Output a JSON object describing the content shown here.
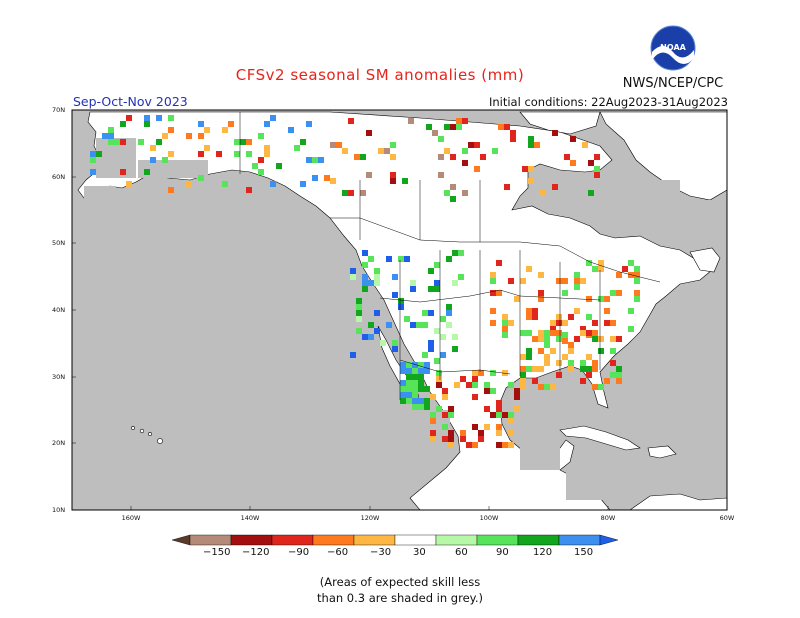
{
  "header": {
    "title": "CFSv2 seasonal SM anomalies (mm)",
    "agency": "NWS/NCEP/CPC",
    "logo_text": "NOAA",
    "period": "Sep-Oct-Nov 2023",
    "initial_conditions": "Initial conditions: 22Aug2023-31Aug2023"
  },
  "axes": {
    "lat_labels": [
      "70N",
      "60N",
      "50N",
      "40N",
      "30N",
      "20N",
      "10N"
    ],
    "lon_labels": [
      "160W",
      "140W",
      "120W",
      "100W",
      "80W",
      "60W"
    ]
  },
  "colorbar": {
    "tick_labels": [
      "−150",
      "−120",
      "−90",
      "−60",
      "−30",
      "30",
      "60",
      "90",
      "120",
      "150"
    ],
    "colors": [
      "#5a3a28",
      "#b58a78",
      "#a30e0e",
      "#e0251c",
      "#ff7a1e",
      "#fdb742",
      "#ffffff",
      "#b7f7a8",
      "#57e35a",
      "#11a61e",
      "#3b90f0",
      "#1e5ee8"
    ]
  },
  "legend_note": [
    "(Areas of expected skill less",
    "than 0.3 are shaded in grey.)"
  ],
  "colors": {
    "ocean": "#bebebe",
    "land": "#ffffff",
    "low_skill": "#bebebe",
    "title": "#e8231b",
    "period": "#2332b4"
  }
}
